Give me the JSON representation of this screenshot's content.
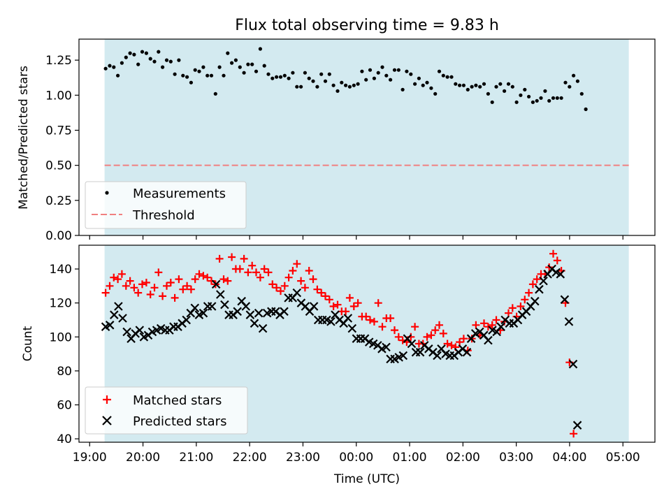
{
  "figure": {
    "title": "Flux total observing time = 9.83 h",
    "xlabel": "Time (UTC)"
  },
  "colors": {
    "background": "#ffffff",
    "span": "#d3eaf0",
    "threshold": "#f08080",
    "matched": "#ff0000",
    "predicted": "#000000",
    "measurement": "#000000"
  },
  "chart_data": [
    {
      "type": "scatter",
      "title": "Flux total observing time = 9.83 h",
      "ylabel": "Matched/Predicted stars",
      "xlabel": "",
      "xlim_hours": [
        18.8,
        29.6
      ],
      "ylim": [
        0,
        1.4
      ],
      "yticks": [
        0.0,
        0.25,
        0.5,
        0.75,
        1.0,
        1.25
      ],
      "ytick_labels": [
        "0.00",
        "0.25",
        "0.50",
        "0.75",
        "1.00",
        "1.25"
      ],
      "observing_span_hours": [
        19.28,
        29.11
      ],
      "threshold": {
        "label": "Threshold",
        "value": 0.5
      },
      "legend": {
        "placement": "lower-left",
        "entries": [
          "Measurements",
          "Threshold"
        ]
      },
      "series": [
        {
          "name": "Measurements",
          "marker": "dot",
          "x_start": 19.3,
          "x_step": 0.0763,
          "y": [
            1.19,
            1.21,
            1.2,
            1.14,
            1.23,
            1.27,
            1.3,
            1.29,
            1.22,
            1.31,
            1.3,
            1.26,
            1.24,
            1.31,
            1.2,
            1.25,
            1.24,
            1.15,
            1.25,
            1.14,
            1.13,
            1.09,
            1.18,
            1.17,
            1.2,
            1.14,
            1.14,
            1.01,
            1.2,
            1.14,
            1.3,
            1.23,
            1.25,
            1.2,
            1.16,
            1.22,
            1.22,
            1.17,
            1.33,
            1.21,
            1.15,
            1.12,
            1.13,
            1.13,
            1.14,
            1.12,
            1.16,
            1.06,
            1.06,
            1.16,
            1.12,
            1.1,
            1.06,
            1.15,
            1.1,
            1.15,
            1.07,
            1.03,
            1.09,
            1.07,
            1.06,
            1.07,
            1.08,
            1.17,
            1.11,
            1.18,
            1.12,
            1.16,
            1.2,
            1.14,
            1.11,
            1.18,
            1.18,
            1.04,
            1.17,
            1.15,
            1.08,
            1.12,
            1.07,
            1.09,
            1.05,
            1.01,
            1.17,
            1.14,
            1.13,
            1.13,
            1.08,
            1.07,
            1.07,
            1.04,
            1.06,
            1.07,
            1.06,
            1.08,
            1.01,
            0.95,
            1.06,
            1.08,
            1.03,
            1.08,
            1.06,
            0.95,
            1.0,
            1.04,
            0.99,
            0.95,
            0.96,
            0.98,
            1.03,
            0.96,
            0.98,
            0.98,
            0.98,
            1.09,
            1.06,
            1.14,
            1.1,
            1.01,
            0.9
          ]
        }
      ]
    },
    {
      "type": "scatter",
      "title": "",
      "ylabel": "Count",
      "xlabel": "Time (UTC)",
      "xlim_hours": [
        18.8,
        29.6
      ],
      "ylim": [
        38,
        154
      ],
      "yticks": [
        40,
        60,
        80,
        100,
        120,
        140
      ],
      "ytick_labels": [
        "40",
        "60",
        "80",
        "100",
        "120",
        "140"
      ],
      "xticks_hours": [
        19,
        20,
        21,
        22,
        23,
        24,
        25,
        26,
        27,
        28,
        29
      ],
      "xtick_labels": [
        "19:00",
        "20:00",
        "21:00",
        "22:00",
        "23:00",
        "00:00",
        "01:00",
        "02:00",
        "03:00",
        "04:00",
        "05:00"
      ],
      "observing_span_hours": [
        19.28,
        29.11
      ],
      "legend": {
        "placement": "lower-left",
        "entries": [
          "Matched stars",
          "Predicted stars"
        ]
      },
      "series": [
        {
          "name": "Matched stars",
          "marker": "plus",
          "x_start": 19.3,
          "x_step": 0.0763,
          "y": [
            126,
            130,
            135,
            134,
            137,
            130,
            133,
            129,
            126,
            131,
            132,
            125,
            129,
            138,
            124,
            130,
            132,
            123,
            134,
            128,
            130,
            128,
            134,
            137,
            136,
            135,
            133,
            131,
            146,
            134,
            133,
            147,
            140,
            140,
            146,
            138,
            142,
            138,
            135,
            140,
            138,
            131,
            129,
            127,
            130,
            135,
            139,
            143,
            133,
            129,
            139,
            134,
            128,
            126,
            124,
            122,
            118,
            119,
            115,
            115,
            123,
            118,
            120,
            112,
            112,
            110,
            109,
            120,
            106,
            111,
            111,
            104,
            100,
            98,
            97,
            100,
            106,
            96,
            96,
            100,
            101,
            104,
            107,
            102,
            96,
            95,
            94,
            97,
            99,
            92,
            99,
            107,
            101,
            108,
            106,
            107,
            110,
            104,
            109,
            114,
            117,
            112,
            118,
            122,
            126,
            131,
            134,
            137,
            137,
            141,
            149,
            145,
            139,
            120,
            85,
            43
          ]
        },
        {
          "name": "Predicted stars",
          "marker": "x",
          "x_start": 19.3,
          "x_step": 0.0797,
          "y": [
            106,
            107,
            113,
            118,
            111,
            103,
            99,
            102,
            104,
            100,
            101,
            103,
            104,
            105,
            104,
            104,
            106,
            106,
            108,
            110,
            114,
            117,
            113,
            114,
            118,
            118,
            131,
            125,
            119,
            113,
            113,
            115,
            121,
            118,
            113,
            108,
            114,
            105,
            114,
            115,
            115,
            113,
            115,
            123,
            123,
            126,
            120,
            118,
            115,
            118,
            110,
            110,
            110,
            109,
            113,
            110,
            108,
            111,
            105,
            99,
            99,
            99,
            97,
            96,
            95,
            93,
            94,
            87,
            87,
            88,
            89,
            99,
            96,
            91,
            91,
            95,
            93,
            91,
            89,
            93,
            90,
            89,
            89,
            91,
            93,
            91,
            99,
            102,
            103,
            101,
            98,
            104,
            103,
            106,
            110,
            108,
            108,
            110,
            113,
            115,
            118,
            121,
            128,
            133,
            137,
            140,
            138,
            137,
            122,
            109,
            84,
            48
          ]
        }
      ]
    }
  ]
}
